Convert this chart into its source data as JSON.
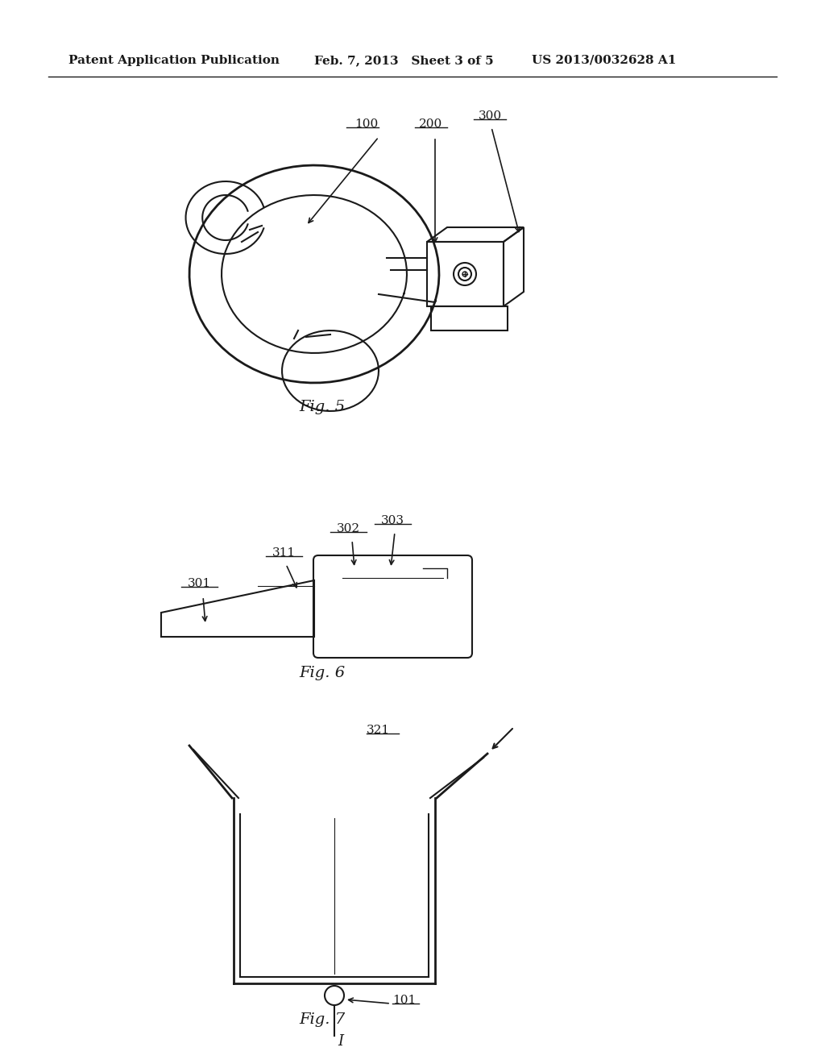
{
  "background_color": "#ffffff",
  "header_left": "Patent Application Publication",
  "header_mid": "Feb. 7, 2013   Sheet 3 of 5",
  "header_right": "US 2013/0032628 A1",
  "header_fontsize": 11,
  "fig5_caption": "Fig. 5",
  "fig6_caption": "Fig. 6",
  "fig7_caption": "Fig. 7",
  "caption_fontsize": 14,
  "label_fontsize": 11,
  "text_color": "#1a1a1a"
}
